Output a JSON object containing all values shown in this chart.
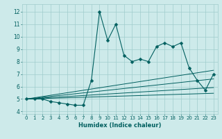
{
  "xlabel": "Humidex (Indice chaleur)",
  "xlim": [
    -0.5,
    23.5
  ],
  "ylim": [
    3.8,
    12.6
  ],
  "yticks": [
    4,
    5,
    6,
    7,
    8,
    9,
    10,
    11,
    12
  ],
  "xticks": [
    0,
    1,
    2,
    3,
    4,
    5,
    6,
    7,
    8,
    9,
    10,
    11,
    12,
    13,
    14,
    15,
    16,
    17,
    18,
    19,
    20,
    21,
    22,
    23
  ],
  "main_line_x": [
    0,
    1,
    2,
    3,
    4,
    5,
    6,
    7,
    8,
    9,
    10,
    11,
    12,
    13,
    14,
    15,
    16,
    17,
    18,
    19,
    20,
    21,
    22,
    23
  ],
  "main_line_y": [
    5.0,
    5.0,
    5.0,
    4.8,
    4.7,
    4.6,
    4.5,
    4.5,
    6.5,
    12.0,
    9.7,
    11.0,
    8.5,
    8.0,
    8.2,
    8.0,
    9.2,
    9.5,
    9.2,
    9.5,
    7.5,
    6.5,
    5.7,
    7.0
  ],
  "band_lines": [
    [
      5.0,
      5.02,
      5.04,
      5.06,
      5.08,
      5.1,
      5.12,
      5.14,
      5.16,
      5.18,
      5.2,
      5.22,
      5.24,
      5.26,
      5.28,
      5.3,
      5.32,
      5.34,
      5.36,
      5.38,
      5.4,
      5.42,
      5.44,
      5.46
    ],
    [
      5.0,
      5.04,
      5.08,
      5.12,
      5.16,
      5.2,
      5.24,
      5.28,
      5.32,
      5.36,
      5.4,
      5.44,
      5.48,
      5.52,
      5.56,
      5.6,
      5.64,
      5.68,
      5.72,
      5.76,
      5.8,
      5.84,
      5.88,
      5.92
    ],
    [
      5.0,
      5.07,
      5.14,
      5.21,
      5.28,
      5.35,
      5.42,
      5.49,
      5.56,
      5.63,
      5.7,
      5.77,
      5.84,
      5.91,
      5.98,
      6.05,
      6.12,
      6.19,
      6.26,
      6.33,
      6.4,
      6.47,
      6.54,
      6.61
    ],
    [
      5.0,
      5.1,
      5.2,
      5.3,
      5.4,
      5.5,
      5.6,
      5.7,
      5.8,
      5.9,
      6.0,
      6.1,
      6.2,
      6.3,
      6.4,
      6.5,
      6.6,
      6.7,
      6.8,
      6.9,
      7.0,
      7.1,
      7.2,
      7.3
    ]
  ],
  "line_color": "#005f5f",
  "bg_color": "#cdeaea",
  "grid_color": "#a0cccc",
  "markersize": 2.5
}
